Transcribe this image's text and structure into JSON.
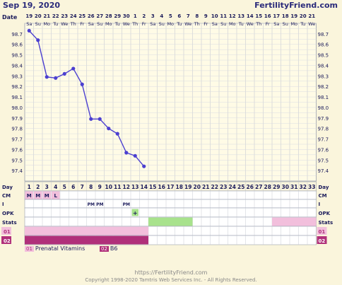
{
  "header": {
    "date": "Sep 19, 2020",
    "brand": "FertilityFriend.com"
  },
  "row_labels": {
    "date": "Date",
    "day": "Day",
    "cm": "CM",
    "i": "I",
    "opk": "OPK",
    "stats": "Stats",
    "med1": "01",
    "med2": "02"
  },
  "dates": [
    "19",
    "20",
    "21",
    "22",
    "23",
    "24",
    "25",
    "26",
    "27",
    "28",
    "29",
    "30",
    "1",
    "2",
    "3",
    "4",
    "5",
    "6",
    "7",
    "8",
    "9",
    "10",
    "11",
    "12",
    "13",
    "14",
    "15",
    "16",
    "17",
    "18",
    "19",
    "20",
    "21"
  ],
  "weekdays": [
    "Sa",
    "Su",
    "Mo",
    "Tu",
    "We",
    "Th",
    "Fr",
    "Sa",
    "Su",
    "Mo",
    "Tu",
    "We",
    "Th",
    "Fr",
    "Sa",
    "Su",
    "Mo",
    "Tu",
    "We",
    "Th",
    "Fr",
    "Sa",
    "Su",
    "Mo",
    "Tu",
    "We",
    "Th",
    "Fr",
    "Sa",
    "Su",
    "Mo",
    "Tu",
    "We"
  ],
  "days": [
    "1",
    "2",
    "3",
    "4",
    "5",
    "6",
    "7",
    "8",
    "9",
    "10",
    "11",
    "12",
    "13",
    "14",
    "15",
    "16",
    "17",
    "18",
    "19",
    "20",
    "21",
    "22",
    "23",
    "24",
    "25",
    "26",
    "27",
    "28",
    "29",
    "30",
    "31",
    "32",
    "33"
  ],
  "cm": [
    "M",
    "M",
    "M",
    "L"
  ],
  "i_row": [
    "PM",
    "PM",
    "PM"
  ],
  "opk_mark": "+",
  "chart_data": {
    "type": "line",
    "y_ticks": [
      "98.7",
      "98.6",
      "98.5",
      "98.4",
      "98.3",
      "98.2",
      "98.1",
      "98.0",
      "97.9",
      "97.8",
      "97.7",
      "97.6",
      "97.5",
      "97.4"
    ],
    "ylim": [
      97.3,
      98.8
    ],
    "temps": [
      98.73,
      98.64,
      98.29,
      98.28,
      98.32,
      98.37,
      98.22,
      97.89,
      97.89,
      97.8,
      97.75,
      97.57,
      97.54,
      97.44
    ],
    "grid": true
  },
  "legend": [
    {
      "code": "01",
      "label": "Prenatal Vitamins"
    },
    {
      "code": "02",
      "label": "B6"
    }
  ],
  "footer": {
    "url": "https://FertilityFriend.com",
    "copyright": "Copyright 1998-2020 Tamtris Web Services Inc. - All Rights Reserved."
  },
  "colors": {
    "line": "#4b3fd0",
    "pink": "#f2bfdc",
    "magenta": "#b0307a",
    "green": "#a8e28c"
  }
}
